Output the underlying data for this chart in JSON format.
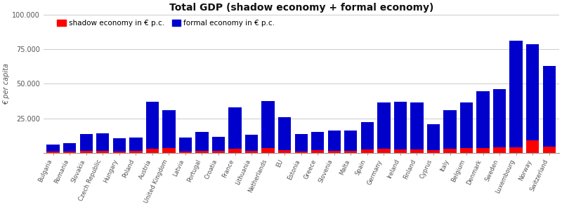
{
  "title": "Total GDP (shadow economy + formal economy)",
  "ylabel": "€ per capita",
  "ylim": [
    0,
    100000
  ],
  "yticks": [
    0,
    25000,
    50000,
    75000,
    100000
  ],
  "ytick_labels": [
    "",
    "25.000",
    "50.000",
    "75.000",
    "100.000"
  ],
  "shadow_color": "#ff0000",
  "formal_color": "#0000cd",
  "bg_color": "#ffffff",
  "grid_color": "#cccccc",
  "legend_shadow": "shadow economy in € p.c.",
  "legend_formal": "formal economy in € p.c.",
  "countries": [
    "Bulgaria",
    "Romania",
    "Slovakia",
    "Czech Republic",
    "Hungary",
    "Poland",
    "Austria",
    "United Kingdom",
    "Latvia",
    "Portugal",
    "Croatia",
    "France",
    "Lithuania",
    "Netherlands",
    "EU",
    "Estonia",
    "Greece",
    "Slovenia",
    "Malta",
    "Spain",
    "Germany",
    "Ireland",
    "Finland",
    "Cyprus",
    "Italy",
    "Belgium",
    "Denmark",
    "Sweden",
    "Luxembourg",
    "Norway",
    "Switzerland"
  ],
  "shadow_values": [
    900,
    1100,
    1500,
    1600,
    1200,
    1800,
    3000,
    3500,
    1200,
    1500,
    1500,
    3000,
    1800,
    3500,
    2200,
    1200,
    2200,
    1800,
    1600,
    2500,
    3000,
    2500,
    2800,
    2000,
    3000,
    3500,
    3500,
    4000,
    4000,
    9000,
    4500
  ],
  "formal_values": [
    5100,
    5900,
    12000,
    12400,
    9300,
    9200,
    34000,
    27500,
    9800,
    13500,
    10000,
    30000,
    11500,
    34000,
    23500,
    12500,
    13000,
    14500,
    14500,
    20000,
    33500,
    34500,
    33500,
    19000,
    28000,
    33000,
    41000,
    42000,
    77000,
    69500,
    58500
  ]
}
